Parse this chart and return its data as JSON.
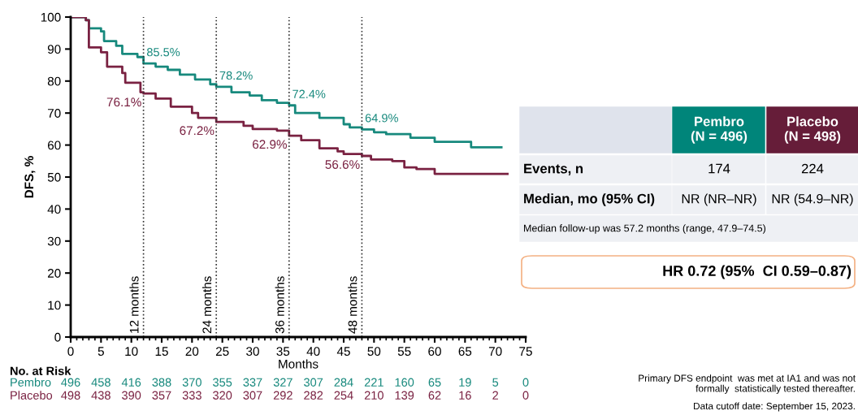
{
  "chart_data": {
    "type": "step",
    "xlabel": "Months",
    "ylabel": "DFS, %",
    "xlim": [
      0,
      75
    ],
    "xticks": [
      0,
      5,
      10,
      15,
      20,
      25,
      30,
      35,
      40,
      45,
      50,
      55,
      60,
      65,
      70,
      75
    ],
    "ylim": [
      0,
      100
    ],
    "yticks": [
      0,
      10,
      20,
      30,
      40,
      50,
      60,
      70,
      80,
      90,
      100
    ],
    "grid": false,
    "legend": false,
    "series": [
      {
        "name": "Pembro",
        "color": "#17897d",
        "x": [
          0,
          2.5,
          3,
          5,
          5.5,
          7.5,
          8.5,
          11,
          12,
          14,
          16,
          18,
          20.5,
          23,
          24,
          26.5,
          29.5,
          31.5,
          34,
          36,
          37,
          41,
          45,
          46,
          48,
          50,
          52,
          56,
          60,
          66,
          71
        ],
        "values": [
          100,
          99,
          96.5,
          95.5,
          92.5,
          91,
          88.5,
          87.5,
          85.5,
          84.5,
          83.5,
          82,
          80.5,
          79,
          78.2,
          76.5,
          75.5,
          74,
          73.2,
          72.4,
          70,
          68.5,
          66.5,
          65.5,
          64.9,
          64,
          63.4,
          62.3,
          61,
          59.3,
          59.3
        ],
        "value_labels": [
          null,
          null,
          null,
          null,
          null,
          null,
          null,
          null,
          "85.5%",
          null,
          null,
          null,
          null,
          null,
          "78.2%",
          null,
          null,
          null,
          null,
          "72.4%",
          null,
          null,
          null,
          null,
          "64.9%",
          null,
          null,
          null,
          null,
          null,
          null
        ]
      },
      {
        "name": "Placebo",
        "color": "#7a2242",
        "x": [
          0,
          2.5,
          3,
          5,
          6,
          8.5,
          9,
          11.5,
          12,
          14,
          16.5,
          20,
          21,
          24,
          28.5,
          30,
          34,
          36,
          38,
          41,
          44,
          45,
          48,
          49.5,
          53,
          55,
          57,
          60,
          72
        ],
        "values": [
          100,
          99,
          90.5,
          89,
          84.5,
          82.5,
          79.5,
          76.5,
          76.1,
          74.5,
          72,
          70,
          68.5,
          67.2,
          66,
          65,
          64.5,
          62.9,
          61.5,
          59,
          58,
          57.2,
          56.6,
          55.5,
          55,
          53,
          52.5,
          51,
          51
        ],
        "value_labels": [
          null,
          null,
          null,
          null,
          null,
          null,
          null,
          null,
          "76.1%",
          null,
          null,
          null,
          null,
          "67.2%",
          null,
          null,
          null,
          "62.9%",
          null,
          null,
          null,
          null,
          "56.6%",
          null,
          null,
          null,
          null,
          null,
          null
        ]
      }
    ],
    "ref_lines": [
      {
        "axis": "x",
        "value": 12,
        "label": "12 months",
        "line_style": "dotted",
        "color": "#333333"
      },
      {
        "axis": "x",
        "value": 24,
        "label": "24 months",
        "line_style": "dotted",
        "color": "#333333"
      },
      {
        "axis": "x",
        "value": 36,
        "label": "36 months",
        "line_style": "dotted",
        "color": "#333333"
      },
      {
        "axis": "x",
        "value": 48,
        "label": "48 months",
        "line_style": "dotted",
        "color": "#333333"
      }
    ],
    "annotations": [
      "Pembro\n(N = 496)",
      "Placebo\n(N = 498)",
      "Events, n",
      "174",
      "224",
      "Median, mo (95% CI)",
      "NR (NR–NR)",
      "NR (54.9–NR)",
      "Median follow-up was 57.2 months (range, 47.9–74.5)",
      "HR 0.72 (95%  CI 0.59–0.87)",
      "Primary DFS endpoint  was met at IA1 and was not\nformally  statistically tested thereafter.",
      "Data cutoff date: September 15, 2023.",
      "No. at Risk",
      "496",
      "458",
      "416",
      "388",
      "370",
      "355",
      "337",
      "327",
      "307",
      "284",
      "221",
      "160",
      "65",
      "19",
      "5",
      "0",
      "498",
      "438",
      "390",
      "357",
      "333",
      "320",
      "307",
      "292",
      "282",
      "254",
      "210",
      "139",
      "62",
      "16",
      "2",
      "0"
    ]
  }
}
